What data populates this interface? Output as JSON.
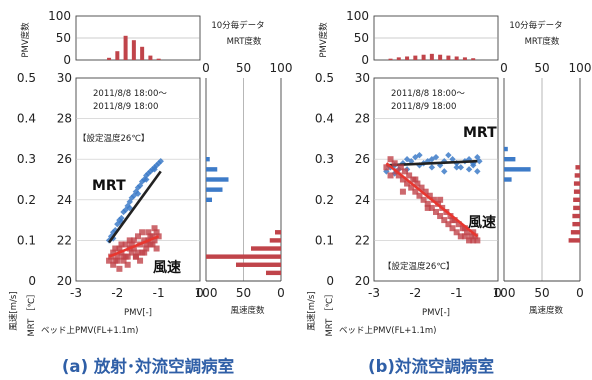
{
  "figure": {
    "panels": [
      {
        "caption": "(a) 放射･対流空調病室",
        "period_line1": "2011/8/8 18:00～",
        "period_line2": "2011/8/9 18:00",
        "setpoint": "【設定温度26℃】",
        "label_mrt": "MRT",
        "label_wind": "風速",
        "top_note_line1": "10分毎データ",
        "top_note_line2": "MRT度数",
        "right_label": "風速度数"
      },
      {
        "caption": "(b)対流空調病室",
        "period_line1": "2011/8/8 18:00～",
        "period_line2": "2011/8/9 18:00",
        "setpoint": "【設定温度26℃】",
        "label_mrt": "MRT",
        "label_wind": "風速",
        "top_note_line1": "10分毎データ",
        "top_note_line2": "MRT度数",
        "right_label": "風速度数"
      }
    ],
    "axes": {
      "x_label": "PMV[-]",
      "x_label_bed": "ベッド上PMV(FL+1.1m)",
      "y_left_label_wind": "風速[m/s]",
      "y_left_label_mrt": "MRT ［℃］",
      "y_top_hist_label": "PMV度数",
      "x_ticks": [
        "-3",
        "-2",
        "-1",
        "0"
      ],
      "y_wind_ticks": [
        "0",
        "0.1",
        "0.2",
        "0.3",
        "0.4",
        "0.5"
      ],
      "y_mrt_ticks": [
        "20",
        "22",
        "24",
        "26",
        "28",
        "30"
      ],
      "top_hist_ticks": [
        "0",
        "50",
        "100"
      ],
      "right_hist_ticks": [
        "100",
        "50",
        "0"
      ],
      "right_hist_ticks_b": [
        "100",
        "50",
        "0"
      ]
    }
  },
  "chart_data": [
    {
      "type": "scatter",
      "title": "(a) 放射･対流空調病室",
      "xlabel": "PMV[-]",
      "xlim": [
        -3,
        0
      ],
      "ylim_wind": [
        0,
        0.5
      ],
      "ylim_mrt": [
        20,
        30
      ],
      "series": [
        {
          "name": "MRT",
          "color": "#3d7bc8",
          "axis": "mrt",
          "x": [
            -2.2,
            -2.15,
            -2.1,
            -2.05,
            -2.0,
            -1.95,
            -1.9,
            -1.85,
            -1.8,
            -1.75,
            -1.7,
            -1.65,
            -1.6,
            -1.55,
            -1.5,
            -1.45,
            -1.4,
            -1.35,
            -1.3,
            -1.25,
            -1.2,
            -1.15,
            -1.1,
            -1.05,
            -1.0,
            -0.95,
            -2.1,
            -1.9,
            -1.7,
            -1.5,
            -1.3,
            -1.1
          ],
          "y": [
            22.0,
            22.2,
            22.4,
            22.5,
            22.8,
            23.0,
            23.1,
            23.4,
            23.5,
            23.7,
            23.9,
            24.1,
            24.2,
            24.4,
            24.6,
            24.7,
            24.9,
            25.0,
            25.2,
            25.3,
            25.4,
            25.5,
            25.6,
            25.7,
            25.8,
            25.9,
            22.1,
            22.9,
            23.6,
            24.3,
            25.0,
            25.5
          ]
        },
        {
          "name": "MRT近似線",
          "color": "#222222",
          "axis": "mrt",
          "x": [
            -2.2,
            -0.95
          ],
          "y": [
            21.9,
            25.4
          ]
        },
        {
          "name": "風速",
          "color": "#c0444a",
          "axis": "wind",
          "x": [
            -2.2,
            -2.15,
            -2.1,
            -2.05,
            -2.0,
            -1.95,
            -1.9,
            -1.85,
            -1.8,
            -1.75,
            -1.7,
            -1.65,
            -1.6,
            -1.55,
            -1.5,
            -1.45,
            -1.4,
            -1.35,
            -1.3,
            -1.25,
            -1.2,
            -1.15,
            -1.1,
            -1.05,
            -1.0,
            -2.1,
            -2.0,
            -1.9,
            -1.8,
            -1.7,
            -1.6,
            -1.5,
            -1.4,
            -1.3,
            -1.2,
            -1.1,
            -2.05,
            -1.85,
            -1.65,
            -1.45,
            -1.25,
            -1.05,
            -1.95,
            -1.75,
            -1.55,
            -1.35,
            -1.15
          ],
          "y": [
            0.05,
            0.06,
            0.07,
            0.05,
            0.06,
            0.08,
            0.07,
            0.05,
            0.09,
            0.06,
            0.1,
            0.07,
            0.08,
            0.06,
            0.11,
            0.09,
            0.07,
            0.1,
            0.08,
            0.12,
            0.09,
            0.11,
            0.1,
            0.12,
            0.11,
            0.04,
            0.05,
            0.09,
            0.06,
            0.08,
            0.1,
            0.07,
            0.12,
            0.09,
            0.11,
            0.13,
            0.08,
            0.06,
            0.09,
            0.05,
            0.1,
            0.08,
            0.03,
            0.04,
            0.06,
            0.07,
            0.09
          ]
        },
        {
          "name": "風速近似線",
          "color": "#e8362f",
          "axis": "wind",
          "x": [
            -2.2,
            -1.0
          ],
          "y": [
            0.06,
            0.11
          ]
        }
      ],
      "pmv_histogram": {
        "x": [
          -2.2,
          -2.0,
          -1.8,
          -1.6,
          -1.4,
          -1.2,
          -1.0
        ],
        "counts": [
          5,
          20,
          55,
          45,
          30,
          10,
          3
        ],
        "ylim": [
          0,
          100
        ]
      },
      "mrt_histogram": {
        "y": [
          24,
          24.5,
          25,
          25.5,
          26
        ],
        "counts": [
          8,
          22,
          30,
          15,
          5
        ],
        "xlim": [
          0,
          100
        ]
      },
      "wind_histogram": {
        "y": [
          0.02,
          0.04,
          0.06,
          0.08,
          0.1,
          0.12
        ],
        "counts": [
          20,
          60,
          100,
          40,
          15,
          8
        ],
        "xlim": [
          0,
          100
        ]
      }
    },
    {
      "type": "scatter",
      "title": "(b)対流空調病室",
      "xlabel": "PMV[-]",
      "xlim": [
        -3,
        0
      ],
      "ylim_wind": [
        0,
        0.5
      ],
      "ylim_mrt": [
        20,
        30
      ],
      "series": [
        {
          "name": "MRT",
          "color": "#3d7bc8",
          "axis": "mrt",
          "x": [
            -2.7,
            -2.6,
            -2.5,
            -2.4,
            -2.3,
            -2.2,
            -2.1,
            -2.0,
            -1.9,
            -1.8,
            -1.7,
            -1.6,
            -1.5,
            -1.4,
            -1.3,
            -1.2,
            -1.1,
            -1.0,
            -0.9,
            -0.8,
            -0.7,
            -0.6,
            -0.5,
            -0.45,
            -2.5,
            -2.2,
            -1.9,
            -1.6,
            -1.3,
            -1.0,
            -0.7,
            -0.6,
            -0.5
          ],
          "y": [
            25.4,
            25.6,
            25.7,
            25.5,
            25.8,
            26.0,
            25.9,
            26.1,
            26.2,
            25.8,
            25.9,
            26.0,
            26.1,
            25.7,
            25.9,
            26.2,
            26.0,
            25.8,
            25.6,
            25.9,
            26.0,
            25.7,
            26.1,
            25.9,
            25.3,
            25.5,
            25.7,
            25.6,
            25.4,
            25.6,
            25.5,
            25.8,
            25.4
          ]
        },
        {
          "name": "MRT近似線",
          "color": "#222222",
          "axis": "mrt",
          "x": [
            -2.7,
            -0.5
          ],
          "y": [
            25.7,
            25.9
          ]
        },
        {
          "name": "風速",
          "color": "#c0444a",
          "axis": "wind",
          "x": [
            -2.7,
            -2.6,
            -2.5,
            -2.45,
            -2.4,
            -2.35,
            -2.3,
            -2.25,
            -2.2,
            -2.15,
            -2.1,
            -2.05,
            -2.0,
            -1.95,
            -1.9,
            -1.85,
            -1.8,
            -1.75,
            -1.7,
            -1.65,
            -1.6,
            -1.55,
            -1.5,
            -1.45,
            -1.4,
            -1.35,
            -1.3,
            -1.25,
            -1.2,
            -1.15,
            -1.1,
            -1.05,
            -1.0,
            -0.95,
            -0.9,
            -0.85,
            -0.8,
            -0.75,
            -0.7,
            -0.65,
            -0.6,
            -0.55,
            -0.5,
            -2.6,
            -2.3,
            -2.0,
            -1.7,
            -1.4,
            -1.1,
            -0.8,
            -0.6
          ],
          "y": [
            0.28,
            0.3,
            0.29,
            0.27,
            0.26,
            0.28,
            0.25,
            0.27,
            0.24,
            0.26,
            0.23,
            0.25,
            0.22,
            0.24,
            0.21,
            0.23,
            0.2,
            0.22,
            0.19,
            0.21,
            0.18,
            0.2,
            0.17,
            0.19,
            0.16,
            0.18,
            0.15,
            0.17,
            0.14,
            0.16,
            0.13,
            0.15,
            0.12,
            0.14,
            0.11,
            0.13,
            0.11,
            0.12,
            0.1,
            0.11,
            0.1,
            0.11,
            0.1,
            0.26,
            0.22,
            0.25,
            0.18,
            0.2,
            0.15,
            0.13,
            0.12
          ]
        },
        {
          "name": "風速近似線",
          "color": "#e8362f",
          "axis": "wind",
          "x": [
            -2.7,
            -0.5
          ],
          "y": [
            0.29,
            0.11
          ]
        }
      ],
      "pmv_histogram": {
        "x": [
          -2.6,
          -2.4,
          -2.2,
          -2.0,
          -1.8,
          -1.6,
          -1.4,
          -1.2,
          -1.0,
          -0.8,
          -0.6
        ],
        "counts": [
          3,
          6,
          8,
          10,
          12,
          14,
          12,
          10,
          8,
          6,
          4
        ],
        "ylim": [
          0,
          100
        ]
      },
      "mrt_histogram": {
        "y": [
          25.0,
          25.5,
          26.0,
          26.5
        ],
        "counts": [
          10,
          35,
          15,
          5
        ],
        "xlim": [
          0,
          100
        ]
      },
      "wind_histogram": {
        "y": [
          0.1,
          0.12,
          0.14,
          0.16,
          0.18,
          0.2,
          0.22,
          0.24,
          0.26,
          0.28
        ],
        "counts": [
          15,
          12,
          10,
          10,
          9,
          9,
          8,
          8,
          7,
          6
        ],
        "xlim": [
          0,
          100
        ]
      }
    }
  ]
}
